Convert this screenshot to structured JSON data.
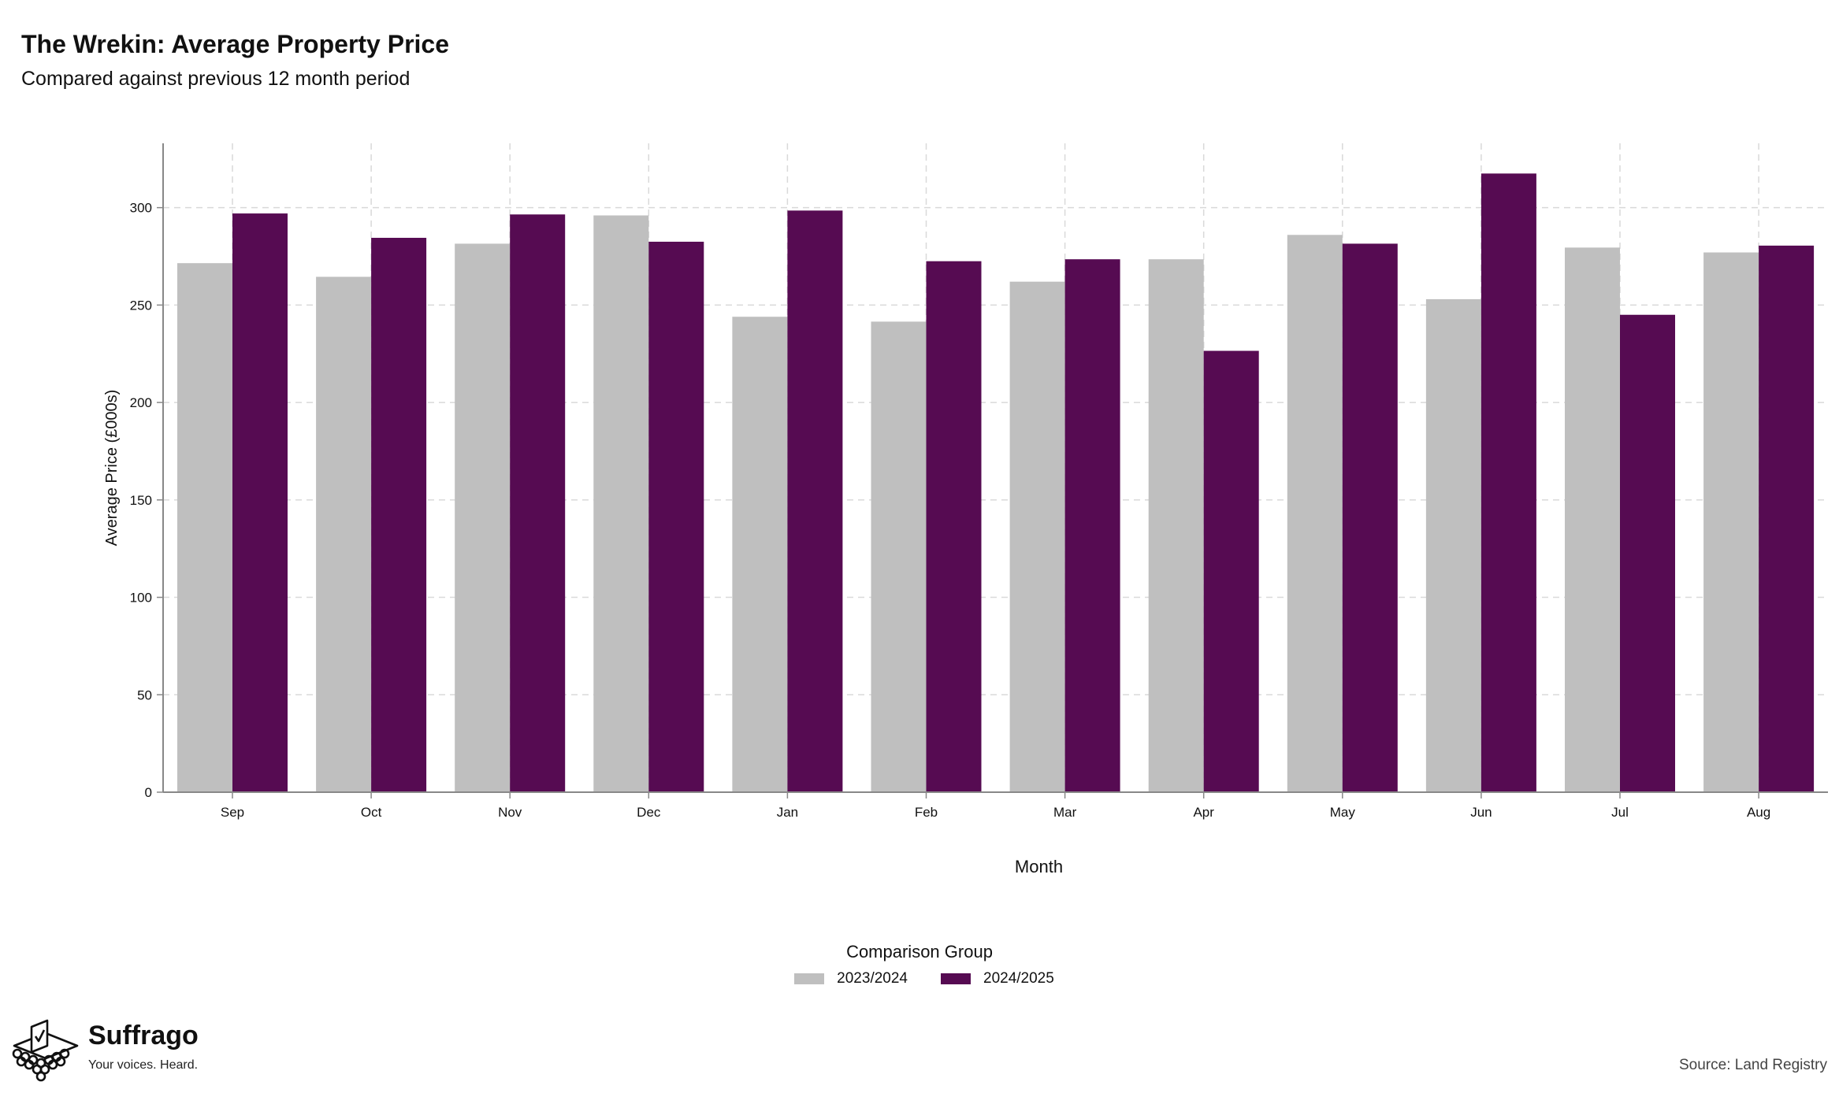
{
  "header": {
    "title": "The Wrekin: Average Property Price",
    "subtitle": "Compared against previous 12 month period"
  },
  "colors": {
    "series_2023_2024": "#bfbfbf",
    "series_2024_2025": "#560b52",
    "grid": "#d9d9d9",
    "axis": "#888888"
  },
  "chart_data": {
    "type": "bar",
    "title": "The Wrekin: Average Property Price",
    "subtitle": "Compared against previous 12 month period",
    "xlabel": "Month",
    "ylabel": "Average Price (£000s)",
    "ylim": [
      0,
      333
    ],
    "yticks": [
      0,
      50,
      100,
      150,
      200,
      250,
      300
    ],
    "grid": true,
    "legend_title": "Comparison Group",
    "legend_position": "bottom",
    "categories": [
      "Sep",
      "Oct",
      "Nov",
      "Dec",
      "Jan",
      "Feb",
      "Mar",
      "Apr",
      "May",
      "Jun",
      "Jul",
      "Aug"
    ],
    "series": [
      {
        "name": "2023/2024",
        "color": "#bfbfbf",
        "values": [
          271.5,
          264.5,
          281.5,
          296,
          244,
          241.5,
          262,
          273.5,
          286,
          253,
          279.5,
          277
        ]
      },
      {
        "name": "2024/2025",
        "color": "#560b52",
        "values": [
          297,
          284.5,
          296.5,
          282.5,
          298.5,
          272.5,
          273.5,
          226.5,
          281.5,
          317.5,
          245,
          280.5
        ]
      }
    ]
  },
  "legend": {
    "title": "Comparison Group",
    "items": [
      {
        "label": "2023/2024",
        "color": "#bfbfbf"
      },
      {
        "label": "2024/2025",
        "color": "#560b52"
      }
    ]
  },
  "branding": {
    "name": "Suffrago",
    "tagline": "Your voices. Heard."
  },
  "footer": {
    "source": "Source: Land Registry"
  }
}
